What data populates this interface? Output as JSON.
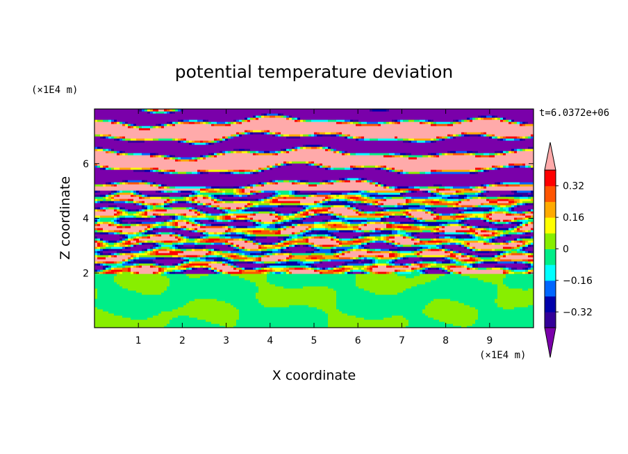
{
  "chart_data": {
    "type": "heatmap",
    "title": "potential temperature deviation",
    "xlabel": "X coordinate",
    "ylabel": "Z coordinate",
    "x_unit": "(×1E4 m)",
    "y_unit": "(×1E4 m)",
    "time_label": "t=6.0372e+06",
    "xlim": [
      0,
      10
    ],
    "ylim": [
      0,
      8
    ],
    "x_ticks": [
      1,
      2,
      3,
      4,
      5,
      6,
      7,
      8,
      9
    ],
    "y_ticks": [
      2,
      4,
      6
    ],
    "colorbar": {
      "levels": [
        -0.4,
        -0.32,
        -0.24,
        -0.16,
        -0.08,
        0,
        0.08,
        0.16,
        0.24,
        0.32,
        0.4
      ],
      "labels": [
        "0.32",
        "0.16",
        "0",
        "−0.16",
        "−0.32"
      ],
      "label_values": [
        0.32,
        0.16,
        0,
        -0.16,
        -0.32
      ],
      "colors_bottom_to_top": [
        "#330099",
        "#0000aa",
        "#0066ff",
        "#00ffff",
        "#00ee88",
        "#88ee00",
        "#ffff00",
        "#ffaa00",
        "#ff5500",
        "#ff0000"
      ],
      "under_color": "#7a00aa",
      "over_color": "#ffaaaa"
    },
    "regions": [
      {
        "z_range": [
          0,
          2
        ],
        "pattern": "mixed layer, values near 0 (green)"
      },
      {
        "z_range": [
          2,
          5
        ],
        "pattern": "turbulent banded layer, full range"
      },
      {
        "z_range": [
          5,
          8
        ],
        "pattern": "alternating layers beyond +0.4 (pink) and below -0.4 (purple)"
      }
    ]
  }
}
